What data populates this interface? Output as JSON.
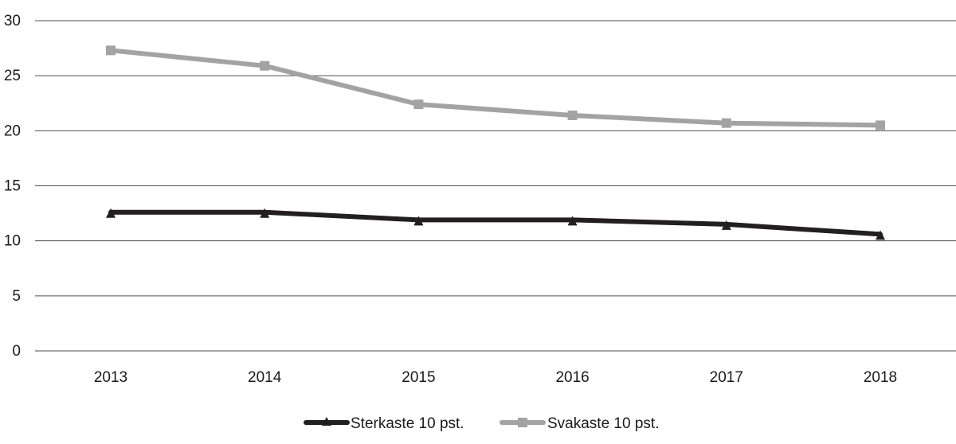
{
  "chart_data": {
    "type": "line",
    "title": "",
    "xlabel": "",
    "ylabel": "",
    "categories": [
      "2013",
      "2014",
      "2015",
      "2016",
      "2017",
      "2018"
    ],
    "yticks": [
      "0",
      "5",
      "10",
      "15",
      "20",
      "25",
      "30"
    ],
    "ylim": [
      0,
      30
    ],
    "grid": true,
    "legend_position": "bottom-center",
    "series": [
      {
        "name": "Sterkaste 10 pst.",
        "values": [
          12.6,
          12.6,
          11.9,
          11.9,
          11.5,
          10.6
        ],
        "color": "#231f20",
        "marker": "triangle"
      },
      {
        "name": "Svakaste 10 pst.",
        "values": [
          27.3,
          25.9,
          22.4,
          21.4,
          20.7,
          20.5
        ],
        "color": "#a3a3a3",
        "marker": "square"
      }
    ]
  }
}
